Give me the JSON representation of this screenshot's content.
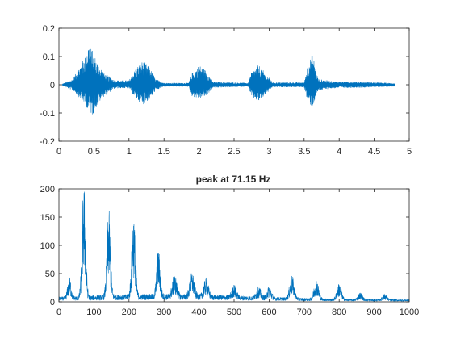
{
  "chart_data": [
    {
      "type": "line",
      "title": "",
      "xlabel": "",
      "ylabel": "",
      "xlim": [
        0,
        5
      ],
      "ylim": [
        -0.2,
        0.2
      ],
      "xticks": [
        0,
        0.5,
        1,
        1.5,
        2,
        2.5,
        3,
        3.5,
        4,
        4.5,
        5
      ],
      "xtick_labels": [
        "0",
        "0.5",
        "1",
        "1.5",
        "2",
        "2.5",
        "3",
        "3.5",
        "4",
        "4.5",
        "5"
      ],
      "yticks": [
        -0.2,
        -0.1,
        0,
        0.1,
        0.2
      ],
      "ytick_labels": [
        "-0.2",
        "-0.1",
        "0",
        "0.1",
        "0.2"
      ],
      "grid": false,
      "color": "#0072bd",
      "series": [
        {
          "x_range": [
            0.05,
            4.8
          ],
          "envelope": [
            {
              "x": 0.05,
              "min": -0.003,
              "max": 0.003
            },
            {
              "x": 0.2,
              "min": -0.02,
              "max": 0.02
            },
            {
              "x": 0.35,
              "min": -0.06,
              "max": 0.09
            },
            {
              "x": 0.42,
              "min": -0.09,
              "max": 0.15
            },
            {
              "x": 0.48,
              "min": -0.11,
              "max": 0.12
            },
            {
              "x": 0.55,
              "min": -0.07,
              "max": 0.08
            },
            {
              "x": 0.65,
              "min": -0.04,
              "max": 0.04
            },
            {
              "x": 0.8,
              "min": -0.012,
              "max": 0.015
            },
            {
              "x": 1.0,
              "min": -0.012,
              "max": 0.015
            },
            {
              "x": 1.1,
              "min": -0.05,
              "max": 0.06
            },
            {
              "x": 1.2,
              "min": -0.07,
              "max": 0.085
            },
            {
              "x": 1.3,
              "min": -0.05,
              "max": 0.06
            },
            {
              "x": 1.38,
              "min": -0.02,
              "max": 0.02
            },
            {
              "x": 1.5,
              "min": -0.006,
              "max": 0.006
            },
            {
              "x": 1.85,
              "min": -0.006,
              "max": 0.006
            },
            {
              "x": 1.9,
              "min": -0.04,
              "max": 0.04
            },
            {
              "x": 2.0,
              "min": -0.05,
              "max": 0.07
            },
            {
              "x": 2.1,
              "min": -0.04,
              "max": 0.05
            },
            {
              "x": 2.2,
              "min": -0.01,
              "max": 0.01
            },
            {
              "x": 2.7,
              "min": -0.006,
              "max": 0.006
            },
            {
              "x": 2.75,
              "min": -0.045,
              "max": 0.045
            },
            {
              "x": 2.85,
              "min": -0.06,
              "max": 0.07
            },
            {
              "x": 2.95,
              "min": -0.035,
              "max": 0.04
            },
            {
              "x": 3.05,
              "min": -0.008,
              "max": 0.008
            },
            {
              "x": 3.5,
              "min": -0.008,
              "max": 0.008
            },
            {
              "x": 3.55,
              "min": -0.06,
              "max": 0.07
            },
            {
              "x": 3.62,
              "min": -0.08,
              "max": 0.11
            },
            {
              "x": 3.7,
              "min": -0.02,
              "max": 0.02
            },
            {
              "x": 3.9,
              "min": -0.012,
              "max": 0.012
            },
            {
              "x": 4.5,
              "min": -0.008,
              "max": 0.008
            },
            {
              "x": 4.8,
              "min": -0.005,
              "max": 0.005
            }
          ]
        }
      ]
    },
    {
      "type": "line",
      "title": "peak at 71.15 Hz",
      "xlabel": "",
      "ylabel": "",
      "xlim": [
        0,
        1000
      ],
      "ylim": [
        0,
        200
      ],
      "xticks": [
        0,
        100,
        200,
        300,
        400,
        500,
        600,
        700,
        800,
        900,
        1000
      ],
      "xtick_labels": [
        "0",
        "100",
        "200",
        "300",
        "400",
        "500",
        "600",
        "700",
        "800",
        "900",
        "1000"
      ],
      "yticks": [
        0,
        50,
        100,
        150,
        200
      ],
      "ytick_labels": [
        "0",
        "50",
        "100",
        "150",
        "200"
      ],
      "grid": false,
      "color": "#0072bd",
      "series": [
        {
          "peaks": [
            {
              "x": 30,
              "y": 35
            },
            {
              "x": 71.15,
              "y": 200
            },
            {
              "x": 142,
              "y": 155
            },
            {
              "x": 213,
              "y": 150
            },
            {
              "x": 284,
              "y": 80
            },
            {
              "x": 330,
              "y": 35
            },
            {
              "x": 380,
              "y": 40
            },
            {
              "x": 420,
              "y": 30
            },
            {
              "x": 500,
              "y": 20
            },
            {
              "x": 570,
              "y": 18
            },
            {
              "x": 600,
              "y": 20
            },
            {
              "x": 665,
              "y": 40
            },
            {
              "x": 735,
              "y": 35
            },
            {
              "x": 800,
              "y": 28
            },
            {
              "x": 860,
              "y": 12
            },
            {
              "x": 930,
              "y": 10
            }
          ]
        }
      ]
    }
  ]
}
